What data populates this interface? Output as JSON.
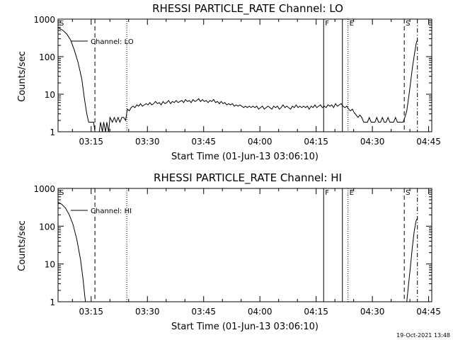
{
  "chart_data": [
    {
      "type": "line",
      "title": "RHESSI PARTICLE_RATE Channel: LO",
      "xlabel": "Start Time (01-Jun-13 03:06:10)",
      "ylabel": "Counts/sec",
      "yscale": "log",
      "xlim": [
        "03:06:10",
        "04:45:50"
      ],
      "ylim": [
        1,
        1000
      ],
      "x_ticks": [
        "03:15",
        "03:30",
        "03:45",
        "04:00",
        "04:15",
        "04:30",
        "04:45"
      ],
      "y_ticks": [
        "1",
        "10",
        "100",
        "1000"
      ],
      "legend": "Channel: LO",
      "legend_placement": "top-left",
      "grid": false,
      "markers": [
        {
          "label": "S",
          "time": "03:06:10",
          "style": "solid"
        },
        {
          "label": "",
          "time": "03:16:00",
          "style": "dashed"
        },
        {
          "label": "",
          "time": "03:24:30",
          "style": "dotted"
        },
        {
          "label": "F",
          "time": "04:17:00",
          "style": "solid"
        },
        {
          "label": "",
          "time": "04:22:00",
          "style": "solid"
        },
        {
          "label": "E",
          "time": "04:23:30",
          "style": "dotted"
        },
        {
          "label": "S",
          "time": "04:38:30",
          "style": "dashed"
        },
        {
          "label": "",
          "time": "04:42:00",
          "style": "dashdot"
        }
      ],
      "series": [
        {
          "name": "Channel: LO",
          "points": [
            [
              "03:06:10",
              600
            ],
            [
              "03:07:30",
              500
            ],
            [
              "03:08:30",
              400
            ],
            [
              "03:09:30",
              280
            ],
            [
              "03:10:30",
              150
            ],
            [
              "03:11:30",
              70
            ],
            [
              "03:12:30",
              25
            ],
            [
              "03:13:10",
              8
            ],
            [
              "03:13:50",
              3
            ],
            [
              "03:14:20",
              1.8
            ],
            [
              "03:15:00",
              1.8
            ],
            [
              "03:15:40",
              1.8
            ],
            [
              "03:16:00",
              1
            ],
            [
              "03:16:40",
              1
            ],
            [
              "03:17:10",
              1
            ],
            [
              "03:17:30",
              1.8
            ],
            [
              "03:18:00",
              1
            ],
            [
              "03:18:20",
              1.8
            ],
            [
              "03:18:50",
              1
            ],
            [
              "03:19:10",
              1.8
            ],
            [
              "03:19:40",
              1
            ],
            [
              "03:20:00",
              2.4
            ],
            [
              "03:20:40",
              1.8
            ],
            [
              "03:21:10",
              2.4
            ],
            [
              "03:21:40",
              1.8
            ],
            [
              "03:22:10",
              2.4
            ],
            [
              "03:22:40",
              1.8
            ],
            [
              "03:23:10",
              2.4
            ],
            [
              "03:23:40",
              2.4
            ],
            [
              "03:24:10",
              2.0
            ],
            [
              "03:24:40",
              4.0
            ],
            [
              "03:25:10",
              3.6
            ],
            [
              "03:25:40",
              4.4
            ],
            [
              "03:26:10",
              4.8
            ],
            [
              "03:26:40",
              4.4
            ],
            [
              "03:27:10",
              5.2
            ],
            [
              "03:27:40",
              4.8
            ],
            [
              "03:28:10",
              5.6
            ],
            [
              "03:28:40",
              4.8
            ],
            [
              "03:29:10",
              5.2
            ],
            [
              "03:29:40",
              5.6
            ],
            [
              "03:30:10",
              5.2
            ],
            [
              "03:30:40",
              6.0
            ],
            [
              "03:31:10",
              5.2
            ],
            [
              "03:31:40",
              5.6
            ],
            [
              "03:32:10",
              6.4
            ],
            [
              "03:32:40",
              5.6
            ],
            [
              "03:33:10",
              6.0
            ],
            [
              "03:33:40",
              5.2
            ],
            [
              "03:34:10",
              6.4
            ],
            [
              "03:34:40",
              5.6
            ],
            [
              "03:35:10",
              6.0
            ],
            [
              "03:35:40",
              6.8
            ],
            [
              "03:36:10",
              5.6
            ],
            [
              "03:36:40",
              6.4
            ],
            [
              "03:37:10",
              6.0
            ],
            [
              "03:37:40",
              6.8
            ],
            [
              "03:38:10",
              6.0
            ],
            [
              "03:38:40",
              6.4
            ],
            [
              "03:39:10",
              6.8
            ],
            [
              "03:39:40",
              6.0
            ],
            [
              "03:40:10",
              7.2
            ],
            [
              "03:40:40",
              6.4
            ],
            [
              "03:41:10",
              6.8
            ],
            [
              "03:41:40",
              6.0
            ],
            [
              "03:42:10",
              7.2
            ],
            [
              "03:42:40",
              6.4
            ],
            [
              "03:43:10",
              6.8
            ],
            [
              "03:43:40",
              7.6
            ],
            [
              "03:44:10",
              6.4
            ],
            [
              "03:44:40",
              7.2
            ],
            [
              "03:45:10",
              6.4
            ],
            [
              "03:45:40",
              6.8
            ],
            [
              "03:46:10",
              6.0
            ],
            [
              "03:46:40",
              6.8
            ],
            [
              "03:47:10",
              6.4
            ],
            [
              "03:47:40",
              7.2
            ],
            [
              "03:48:10",
              6.0
            ],
            [
              "03:48:40",
              6.4
            ],
            [
              "03:49:10",
              5.6
            ],
            [
              "03:49:40",
              6.4
            ],
            [
              "03:50:10",
              5.6
            ],
            [
              "03:50:40",
              6.0
            ],
            [
              "03:51:10",
              5.2
            ],
            [
              "03:51:40",
              5.6
            ],
            [
              "03:52:10",
              5.2
            ],
            [
              "03:52:40",
              5.6
            ],
            [
              "03:53:10",
              4.8
            ],
            [
              "03:53:40",
              5.2
            ],
            [
              "03:54:10",
              4.8
            ],
            [
              "03:54:40",
              5.2
            ],
            [
              "03:55:10",
              4.8
            ],
            [
              "03:55:40",
              4.4
            ],
            [
              "03:56:10",
              4.8
            ],
            [
              "03:56:40",
              4.4
            ],
            [
              "03:57:10",
              4.8
            ],
            [
              "03:57:40",
              4.4
            ],
            [
              "03:58:10",
              4.8
            ],
            [
              "03:58:40",
              4.4
            ],
            [
              "03:59:10",
              4.8
            ],
            [
              "03:59:40",
              4.0
            ],
            [
              "04:00:10",
              4.4
            ],
            [
              "04:00:40",
              4.8
            ],
            [
              "04:01:10",
              4.0
            ],
            [
              "04:01:40",
              4.4
            ],
            [
              "04:02:10",
              4.8
            ],
            [
              "04:02:40",
              4.4
            ],
            [
              "04:03:10",
              4.0
            ],
            [
              "04:03:40",
              4.8
            ],
            [
              "04:04:10",
              4.4
            ],
            [
              "04:04:40",
              4.8
            ],
            [
              "04:05:10",
              4.0
            ],
            [
              "04:05:40",
              4.4
            ],
            [
              "04:06:10",
              5.2
            ],
            [
              "04:06:40",
              4.4
            ],
            [
              "04:07:10",
              4.8
            ],
            [
              "04:07:40",
              4.4
            ],
            [
              "04:08:10",
              4.0
            ],
            [
              "04:08:40",
              4.8
            ],
            [
              "04:09:10",
              4.4
            ],
            [
              "04:09:40",
              5.2
            ],
            [
              "04:10:10",
              4.4
            ],
            [
              "04:10:40",
              4.8
            ],
            [
              "04:11:10",
              4.4
            ],
            [
              "04:11:40",
              4.8
            ],
            [
              "04:12:10",
              4.4
            ],
            [
              "04:12:40",
              4.8
            ],
            [
              "04:13:10",
              4.0
            ],
            [
              "04:13:40",
              4.8
            ],
            [
              "04:14:10",
              4.4
            ],
            [
              "04:14:40",
              5.2
            ],
            [
              "04:15:10",
              4.4
            ],
            [
              "04:15:40",
              4.8
            ],
            [
              "04:16:10",
              5.2
            ],
            [
              "04:16:40",
              4.4
            ],
            [
              "04:17:10",
              4.8
            ],
            [
              "04:17:40",
              4.4
            ],
            [
              "04:18:10",
              5.2
            ],
            [
              "04:18:40",
              4.8
            ],
            [
              "04:19:10",
              5.2
            ],
            [
              "04:19:40",
              4.4
            ],
            [
              "04:20:10",
              5.6
            ],
            [
              "04:20:40",
              4.8
            ],
            [
              "04:21:10",
              5.2
            ],
            [
              "04:21:40",
              5.6
            ],
            [
              "04:22:10",
              4.8
            ],
            [
              "04:22:40",
              4.4
            ],
            [
              "04:23:10",
              4.8
            ],
            [
              "04:23:40",
              4.0
            ],
            [
              "04:24:10",
              3.6
            ],
            [
              "04:24:40",
              4.0
            ],
            [
              "04:25:10",
              3.2
            ],
            [
              "04:25:40",
              2.8
            ],
            [
              "04:26:10",
              2.4
            ],
            [
              "04:26:40",
              2.8
            ],
            [
              "04:27:10",
              2.4
            ],
            [
              "04:27:40",
              1.8
            ],
            [
              "04:28:10",
              1.8
            ],
            [
              "04:28:40",
              1.8
            ],
            [
              "04:29:10",
              2.4
            ],
            [
              "04:29:40",
              1.8
            ],
            [
              "04:30:10",
              1.8
            ],
            [
              "04:30:40",
              1.8
            ],
            [
              "04:31:10",
              2.4
            ],
            [
              "04:31:40",
              1.8
            ],
            [
              "04:32:10",
              1.8
            ],
            [
              "04:32:40",
              2.4
            ],
            [
              "04:33:10",
              1.8
            ],
            [
              "04:33:40",
              1.8
            ],
            [
              "04:34:10",
              2.4
            ],
            [
              "04:34:40",
              1.8
            ],
            [
              "04:35:10",
              1.8
            ],
            [
              "04:35:40",
              1.8
            ],
            [
              "04:36:10",
              2.4
            ],
            [
              "04:36:40",
              1.8
            ],
            [
              "04:37:10",
              1.8
            ],
            [
              "04:37:40",
              1.8
            ],
            [
              "04:38:10",
              1.8
            ],
            [
              "04:38:40",
              2.4
            ],
            [
              "04:39:10",
              3.6
            ],
            [
              "04:39:40",
              8
            ],
            [
              "04:40:10",
              20
            ],
            [
              "04:40:40",
              50
            ],
            [
              "04:41:10",
              110
            ],
            [
              "04:41:40",
              220
            ],
            [
              "04:42:00",
              280
            ]
          ]
        }
      ]
    },
    {
      "type": "line",
      "title": "RHESSI PARTICLE_RATE Channel: HI",
      "xlabel": "Start Time (01-Jun-13 03:06:10)",
      "ylabel": "Counts/sec",
      "yscale": "log",
      "xlim": [
        "03:06:10",
        "04:45:50"
      ],
      "ylim": [
        1,
        1000
      ],
      "x_ticks": [
        "03:15",
        "03:30",
        "03:45",
        "04:00",
        "04:15",
        "04:30",
        "04:45"
      ],
      "y_ticks": [
        "1",
        "10",
        "100",
        "1000"
      ],
      "legend": "Channel: HI",
      "legend_placement": "top-left",
      "grid": false,
      "markers": [
        {
          "label": "S",
          "time": "03:06:10",
          "style": "solid"
        },
        {
          "label": "",
          "time": "03:16:00",
          "style": "dashed"
        },
        {
          "label": "",
          "time": "03:24:30",
          "style": "dotted"
        },
        {
          "label": "F",
          "time": "04:17:00",
          "style": "solid"
        },
        {
          "label": "",
          "time": "04:22:00",
          "style": "solid"
        },
        {
          "label": "E",
          "time": "04:23:30",
          "style": "dotted"
        },
        {
          "label": "S",
          "time": "04:38:30",
          "style": "dashed"
        },
        {
          "label": "",
          "time": "04:42:00",
          "style": "dashdot"
        }
      ],
      "series": [
        {
          "name": "Channel: HI",
          "points": [
            [
              "03:06:10",
              430
            ],
            [
              "03:07:10",
              380
            ],
            [
              "03:08:10",
              300
            ],
            [
              "03:09:10",
              200
            ],
            [
              "03:10:10",
              110
            ],
            [
              "03:11:10",
              45
            ],
            [
              "03:12:10",
              13
            ],
            [
              "03:12:50",
              4
            ],
            [
              "03:13:20",
              1.3
            ],
            [
              "03:13:30",
              1
            ]
          ]
        },
        {
          "name": "Channel: HI",
          "points": [
            [
              "04:39:10",
              1
            ],
            [
              "04:39:40",
              3
            ],
            [
              "04:40:10",
              9
            ],
            [
              "04:40:40",
              28
            ],
            [
              "04:41:10",
              75
            ],
            [
              "04:41:40",
              140
            ],
            [
              "04:42:00",
              160
            ]
          ]
        }
      ]
    }
  ],
  "timestamp": "19-Oct-2021 13:48",
  "colors": {
    "background": "#ffffff",
    "foreground": "#000000"
  }
}
